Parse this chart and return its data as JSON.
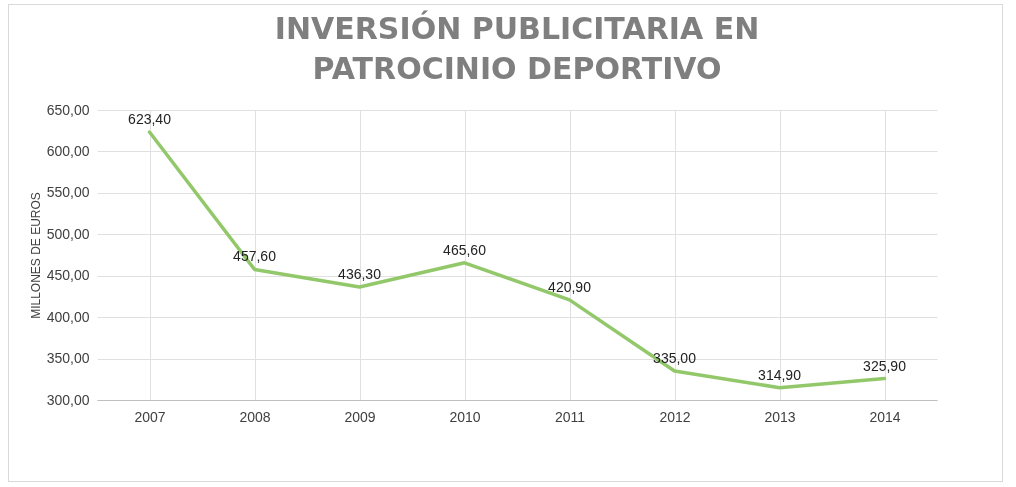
{
  "chart_data": {
    "type": "line",
    "title": "INVERSIÓN PUBLICITARIA EN PATROCINIO DEPORTIVO",
    "ylabel": "MILLONES DE EUROS",
    "categories": [
      "2007",
      "2008",
      "2009",
      "2010",
      "2011",
      "2012",
      "2013",
      "2014"
    ],
    "values": [
      623.4,
      457.6,
      436.3,
      465.6,
      420.9,
      335.0,
      314.9,
      325.9
    ],
    "value_labels": [
      "623,40",
      "457,60",
      "436,30",
      "465,60",
      "420,90",
      "335,00",
      "314,90",
      "325,90"
    ],
    "color": "#92c86a",
    "ylim": [
      300,
      650
    ],
    "yticks": [
      {
        "value": 300,
        "label": "300,00"
      },
      {
        "value": 350,
        "label": "350,00"
      },
      {
        "value": 400,
        "label": "400,00"
      },
      {
        "value": 450,
        "label": "450,00"
      },
      {
        "value": 500,
        "label": "500,00"
      },
      {
        "value": 550,
        "label": "550,00"
      },
      {
        "value": 600,
        "label": "600,00"
      },
      {
        "value": 650,
        "label": "650,00"
      }
    ],
    "grid": true,
    "marker": "none",
    "line_style": "solid"
  }
}
